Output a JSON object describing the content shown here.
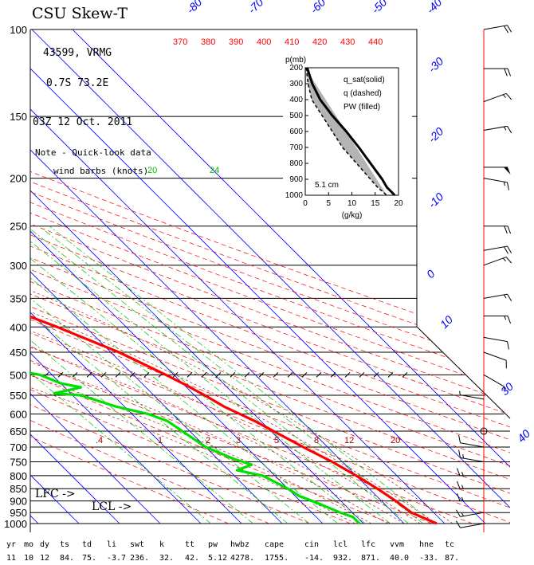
{
  "header": {
    "title": "CSU Skew-T",
    "station": "43599, VRMG",
    "location": "0.7S   73.2E",
    "time": "03Z 12 Oct. 2011",
    "note_line1": "Note - Quick-look data",
    "note_line2": "wind barbs (knots)"
  },
  "markers": {
    "lfc": "LFC ->",
    "lcl": "LCL ->"
  },
  "colors": {
    "temperature": "#ff0000",
    "dewpoint": "#00e000",
    "isotherm": "#0000ff",
    "dry_adiabat": "#ff0000",
    "mixing_ratio": "#00c000",
    "moist_adiabat": "#a00000",
    "isobar": "#000000"
  },
  "chart_data": {
    "type": "line",
    "title": "CSU Skew-T",
    "y_scale": "log-pressure",
    "pressure_ticks": [
      "100",
      "150",
      "200",
      "250",
      "300",
      "350",
      "400",
      "450",
      "500",
      "550",
      "600",
      "650",
      "700",
      "750",
      "800",
      "850",
      "900",
      "950",
      "1000"
    ],
    "isotherm_labels": [
      "-80",
      "-70",
      "-60",
      "-50",
      "-40",
      "-30",
      "-20",
      "-10",
      "0",
      "10",
      "30",
      "40"
    ],
    "theta_labels": [
      "370",
      "380",
      "390",
      "400",
      "410",
      "420",
      "430",
      "440"
    ],
    "mixing_ratio_labels": [
      "20",
      "24"
    ],
    "moist_labels": [
      ".4",
      "1",
      "2",
      "3",
      "5",
      "8",
      "12",
      "20"
    ],
    "series": [
      {
        "key": "temperature",
        "pressure": [
          100,
          102,
          108,
          115,
          140,
          160,
          200,
          250,
          300,
          330,
          345,
          350,
          400,
          450,
          500,
          520,
          550,
          580,
          620,
          700,
          750,
          800,
          850,
          900,
          950,
          1000
        ],
        "temperature": [
          -73,
          -78,
          -82,
          -84,
          -74,
          -65,
          -53,
          -42,
          -33,
          -28,
          -27,
          -28.5,
          -17,
          -8,
          -2,
          0,
          2.5,
          4.5,
          8.5,
          14,
          17.5,
          20,
          22,
          23.5,
          24.5,
          28
        ]
      },
      {
        "key": "dewpoint",
        "pressure": [
          200,
          240,
          270,
          300,
          340,
          350,
          400,
          420,
          430,
          500,
          520,
          530,
          545,
          550,
          570,
          580,
          600,
          620,
          700,
          740,
          760,
          780,
          800,
          850,
          880,
          900,
          950,
          970,
          1000
        ],
        "temperature": [
          -68,
          -70,
          -80,
          -68,
          -84,
          -66,
          -85,
          -82,
          -66,
          -33,
          -30,
          -26,
          -34,
          -28,
          -24,
          -22,
          -16,
          -13,
          -10,
          -6,
          -3,
          -8,
          -3,
          0,
          1,
          3,
          7,
          9,
          9
        ]
      }
    ],
    "inset": {
      "type": "line",
      "y_label": "p(mb)",
      "x_label": "(g/kg)",
      "legend": [
        "q_sat(solid)",
        "q (dashed)",
        "PW (filled)"
      ],
      "pw_label": "5.1 cm",
      "y_ticks": [
        "200",
        "300",
        "400",
        "500",
        "600",
        "700",
        "800",
        "900",
        "1000"
      ],
      "x_ticks": [
        "0",
        "5",
        "10",
        "15",
        "20"
      ],
      "pressure": [
        200,
        300,
        400,
        500,
        600,
        700,
        800,
        900,
        950,
        1000
      ],
      "q_sat": [
        0.4,
        1.5,
        3.2,
        5.8,
        8.8,
        11.5,
        14.0,
        16.5,
        17.5,
        19.2
      ],
      "q": [
        0.2,
        0.6,
        1.4,
        3.6,
        5.8,
        8.0,
        11.0,
        14.0,
        15.5,
        17.5
      ]
    },
    "winds": [
      {
        "p": 100,
        "speed": 20,
        "dir": 80
      },
      {
        "p": 120,
        "speed": 20,
        "dir": 90
      },
      {
        "p": 140,
        "speed": 15,
        "dir": 70
      },
      {
        "p": 160,
        "speed": 15,
        "dir": 80
      },
      {
        "p": 190,
        "speed": 50,
        "dir": 90
      },
      {
        "p": 200,
        "speed": 15,
        "dir": 100
      },
      {
        "p": 250,
        "speed": 20,
        "dir": 90
      },
      {
        "p": 280,
        "speed": 20,
        "dir": 80
      },
      {
        "p": 300,
        "speed": 15,
        "dir": 70
      },
      {
        "p": 350,
        "speed": 15,
        "dir": 80
      },
      {
        "p": 380,
        "speed": 15,
        "dir": 90
      },
      {
        "p": 420,
        "speed": 10,
        "dir": 100
      },
      {
        "p": 450,
        "speed": 10,
        "dir": 110
      },
      {
        "p": 500,
        "speed": 5,
        "dir": 120
      },
      {
        "p": 560,
        "speed": 5,
        "dir": 280
      },
      {
        "p": 650,
        "speed": 0,
        "dir": 0
      },
      {
        "p": 700,
        "speed": 10,
        "dir": 280
      },
      {
        "p": 750,
        "speed": 15,
        "dir": 280
      },
      {
        "p": 800,
        "speed": 15,
        "dir": 270
      },
      {
        "p": 850,
        "speed": 15,
        "dir": 270
      },
      {
        "p": 900,
        "speed": 15,
        "dir": 270
      },
      {
        "p": 950,
        "speed": 15,
        "dir": 260
      },
      {
        "p": 1000,
        "speed": 10,
        "dir": 260
      }
    ],
    "stats": {
      "headers": [
        "yr",
        "mo",
        "dy",
        "ts",
        "td",
        "li",
        "swt",
        "k",
        "tt",
        "pw",
        "hwbz",
        "cape",
        "cin",
        "lcl",
        "lfc",
        "vvm",
        "hne",
        "tc"
      ],
      "values": [
        "11",
        "10",
        "12",
        "84.",
        "75.",
        "-3.7",
        "236.",
        "32.",
        "42.",
        "5.12",
        "4278.",
        "1755.",
        "-14.",
        "932.",
        "871.",
        "40.0",
        "-33.",
        "87."
      ]
    }
  }
}
